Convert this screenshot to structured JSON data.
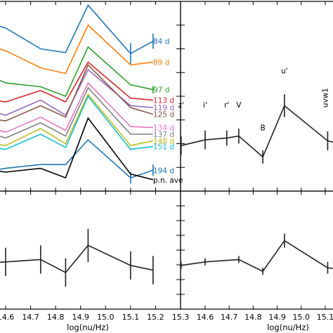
{
  "chart_data": [
    {
      "type": "line",
      "panel": "top-left",
      "xlim": [
        14.6,
        15.3
      ],
      "ylim": [
        0,
        1
      ],
      "series": [
        {
          "name": "84 d",
          "color": "#1f77b4",
          "x": [
            14.55,
            14.6,
            14.74,
            14.84,
            14.93,
            15.1,
            15.19
          ],
          "y": [
            0.88,
            0.86,
            0.75,
            0.73,
            0.98,
            0.725,
            0.79
          ],
          "err": [
            0,
            0,
            0,
            0,
            0,
            0.055,
            0.04
          ]
        },
        {
          "name": "89 d",
          "color": "#ff7f0e",
          "x": [
            14.55,
            14.6,
            14.74,
            14.84,
            14.93,
            15.1,
            15.19
          ],
          "y": [
            0.76,
            0.74,
            0.65,
            0.62,
            0.875,
            0.665,
            0.68
          ],
          "err": [
            0,
            0,
            0,
            0,
            0,
            0,
            0
          ]
        },
        {
          "name": "97 d",
          "color": "#2ca02c",
          "x": [
            14.55,
            14.6,
            14.74,
            14.84,
            14.93,
            15.1,
            15.19
          ],
          "y": [
            0.6,
            0.57,
            0.55,
            0.5,
            0.76,
            0.56,
            0.535
          ],
          "err": [
            0,
            0,
            0,
            0,
            0,
            0,
            0.02
          ]
        },
        {
          "name": "113 d",
          "color": "#d62728",
          "x": [
            14.55,
            14.6,
            14.74,
            14.84,
            14.93,
            15.1,
            15.19
          ],
          "y": [
            0.48,
            0.47,
            0.53,
            0.47,
            0.68,
            0.49,
            0.48
          ],
          "err": [
            0,
            0,
            0,
            0,
            0,
            0,
            0
          ]
        },
        {
          "name": "119 d",
          "color": "#9467bd",
          "x": [
            14.55,
            14.6,
            14.74,
            14.84,
            14.93,
            15.1,
            15.19
          ],
          "y": [
            0.42,
            0.4,
            0.48,
            0.4,
            0.64,
            0.45,
            0.44
          ],
          "err": [
            0,
            0,
            0,
            0,
            0,
            0,
            0
          ]
        },
        {
          "name": "125 d",
          "color": "#8c564b",
          "x": [
            14.55,
            14.6,
            14.74,
            14.84,
            14.93,
            15.1,
            15.19
          ],
          "y": [
            0.38,
            0.37,
            0.45,
            0.39,
            0.665,
            0.44,
            0.405
          ],
          "err": [
            0,
            0,
            0,
            0,
            0,
            0,
            0
          ]
        },
        {
          "name": "134 d",
          "color": "#e377c2",
          "x": [
            14.55,
            14.6,
            14.74,
            14.84,
            14.93,
            15.1,
            15.19
          ],
          "y": [
            0.33,
            0.31,
            0.39,
            0.32,
            0.57,
            0.34,
            0.335
          ],
          "err": [
            0,
            0,
            0,
            0,
            0,
            0,
            0
          ]
        },
        {
          "name": "137 d",
          "color": "#7f7f7f",
          "x": [
            14.55,
            14.6,
            14.74,
            14.84,
            14.93,
            15.1,
            15.19
          ],
          "y": [
            0.3,
            0.28,
            0.36,
            0.29,
            0.545,
            0.3,
            0.3
          ],
          "err": [
            0,
            0,
            0,
            0,
            0,
            0,
            0
          ]
        },
        {
          "name": "148 d",
          "color": "#bcbd22",
          "x": [
            14.55,
            14.6,
            14.74,
            14.84,
            14.93,
            15.1,
            15.19
          ],
          "y": [
            0.25,
            0.24,
            0.33,
            0.25,
            0.51,
            0.24,
            0.265
          ],
          "err": [
            0,
            0,
            0,
            0,
            0,
            0,
            0
          ]
        },
        {
          "name": "151 d",
          "color": "#17becf",
          "x": [
            14.55,
            14.6,
            14.74,
            14.84,
            14.93,
            15.1,
            15.19
          ],
          "y": [
            0.23,
            0.22,
            0.3,
            0.23,
            0.5,
            0.22,
            0.235
          ],
          "err": [
            0,
            0,
            0,
            0,
            0,
            0,
            0
          ]
        },
        {
          "name": "194 d",
          "color": "#1f77b4",
          "x": [
            14.55,
            14.6,
            14.74,
            14.84,
            14.93,
            15.1,
            15.19
          ],
          "y": [
            0.11,
            0.12,
            0.14,
            0.14,
            0.27,
            0.07,
            0.11
          ],
          "err": [
            0,
            0,
            0,
            0,
            0,
            0.03,
            0.03
          ]
        },
        {
          "name": "p.n. ave",
          "color": "#000000",
          "x": [
            14.55,
            14.6,
            14.74,
            14.84,
            14.93,
            15.1,
            15.19
          ],
          "y": [
            0.11,
            0.1,
            0.12,
            0.07,
            0.385,
            0.09,
            0.06
          ],
          "err": [
            0,
            0,
            0,
            0,
            0,
            0,
            0
          ]
        }
      ]
    },
    {
      "type": "line",
      "panel": "top-right",
      "xlim": [
        14.6,
        15.3
      ],
      "ylim": [
        0,
        1
      ],
      "band_labels": [
        {
          "label": "z'",
          "x": 14.5,
          "y": 0.44
        },
        {
          "label": "i'",
          "x": 14.6,
          "y": 0.44
        },
        {
          "label": "r'",
          "x": 14.69,
          "y": 0.44
        },
        {
          "label": "V",
          "x": 14.74,
          "y": 0.44
        },
        {
          "label": "B",
          "x": 14.84,
          "y": 0.32
        },
        {
          "label": "u'",
          "x": 14.93,
          "y": 0.62
        },
        {
          "label": "uvw1",
          "x": 15.11,
          "y": 0.44
        }
      ],
      "series": [
        {
          "x": [
            14.5,
            14.6,
            14.69,
            14.74,
            14.84,
            14.93,
            15.11,
            15.19
          ],
          "y": [
            0.24,
            0.27,
            0.28,
            0.29,
            0.18,
            0.45,
            0.265,
            0.24
          ],
          "err": [
            0.05,
            0.05,
            0.04,
            0.04,
            0.035,
            0.06,
            0.05,
            0
          ]
        }
      ]
    },
    {
      "type": "line",
      "panel": "bottom-left",
      "xlim": [
        14.6,
        15.3
      ],
      "ylim": [
        0,
        1
      ],
      "series": [
        {
          "x": [
            14.5,
            14.6,
            14.74,
            14.84,
            14.93,
            15.1,
            15.19
          ],
          "y": [
            0.39,
            0.4,
            0.42,
            0.31,
            0.54,
            0.37,
            0.33
          ],
          "err": [
            0.12,
            0.12,
            0.12,
            0.12,
            0.14,
            0.12,
            0.12
          ]
        }
      ]
    },
    {
      "type": "line",
      "panel": "bottom-right",
      "xlim": [
        14.6,
        15.3
      ],
      "ylim": [
        0,
        1
      ],
      "series": [
        {
          "x": [
            14.5,
            14.6,
            14.74,
            14.84,
            14.93,
            15.11,
            15.19
          ],
          "y": [
            0.37,
            0.4,
            0.42,
            0.32,
            0.58,
            0.35,
            0.33
          ],
          "err": [
            0.03,
            0.03,
            0.03,
            0.03,
            0.06,
            0.05,
            0
          ]
        }
      ]
    }
  ],
  "axes": {
    "xlabel": "log(nu/Hz)",
    "left_ticks": [
      "14.6",
      "14.7",
      "14.8",
      "14.9",
      "15.0",
      "15.1",
      "15.2",
      "15.3"
    ],
    "right_ticks": [
      "14.6",
      "14.7",
      "14.8",
      "14.9",
      "15.0",
      "15.1"
    ]
  }
}
